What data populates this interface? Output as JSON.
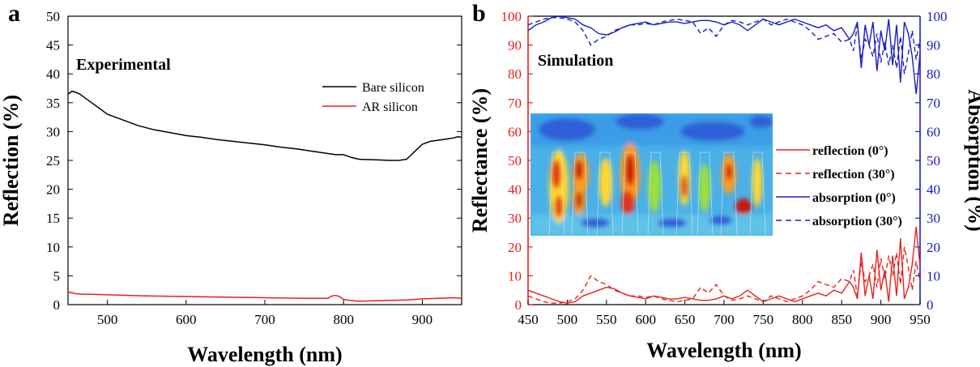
{
  "chart_data": [
    {
      "panel": "a",
      "type": "line",
      "annotation": "Experimental",
      "xlabel": "Wavelength (nm)",
      "ylabel": "Reflection (%)",
      "xlim": [
        450,
        950
      ],
      "ylim": [
        0,
        50
      ],
      "x_ticks": [
        500,
        600,
        700,
        800,
        900
      ],
      "y_ticks": [
        0,
        5,
        10,
        15,
        20,
        25,
        30,
        35,
        40,
        45,
        50
      ],
      "legend_position": "top-right",
      "series": [
        {
          "name": "Bare silicon",
          "color": "#000000",
          "x": [
            450,
            455,
            460,
            465,
            470,
            480,
            490,
            500,
            520,
            540,
            560,
            580,
            600,
            620,
            640,
            660,
            680,
            700,
            720,
            740,
            760,
            780,
            790,
            800,
            810,
            820,
            840,
            860,
            870,
            880,
            890,
            900,
            910,
            920,
            930,
            940,
            945,
            950
          ],
          "y": [
            36.5,
            37.0,
            36.8,
            36.5,
            36.0,
            35.0,
            34.0,
            33.0,
            32.0,
            31.0,
            30.3,
            29.8,
            29.3,
            29.0,
            28.6,
            28.3,
            28.0,
            27.7,
            27.3,
            27.0,
            26.6,
            26.2,
            26.0,
            26.0,
            25.5,
            25.2,
            25.1,
            25.0,
            25.0,
            25.2,
            26.5,
            27.8,
            28.3,
            28.5,
            28.7,
            28.9,
            29.1,
            29.0
          ]
        },
        {
          "name": "AR silicon",
          "color": "#e8201e",
          "x": [
            450,
            460,
            470,
            480,
            500,
            550,
            600,
            650,
            700,
            750,
            780,
            785,
            790,
            795,
            800,
            810,
            820,
            850,
            880,
            900,
            920,
            940,
            950
          ],
          "y": [
            2.2,
            1.9,
            1.8,
            1.8,
            1.7,
            1.5,
            1.4,
            1.3,
            1.2,
            1.1,
            1.1,
            1.5,
            1.6,
            1.4,
            0.9,
            0.7,
            0.6,
            0.7,
            0.8,
            1.0,
            1.1,
            1.2,
            1.1
          ]
        }
      ]
    },
    {
      "panel": "b",
      "type": "line",
      "annotation": "Simulation",
      "xlabel": "Wavelength (nm)",
      "ylabel_left": "Reflectance (%)",
      "ylabel_right": "Absorption (%)",
      "xlim": [
        450,
        950
      ],
      "ylim_left": [
        0,
        100
      ],
      "ylim_right": [
        0,
        100
      ],
      "x_ticks": [
        450,
        500,
        550,
        600,
        650,
        700,
        750,
        800,
        850,
        900,
        950
      ],
      "y_ticks": [
        0,
        10,
        20,
        30,
        40,
        50,
        60,
        70,
        80,
        90,
        100
      ],
      "left_axis_color": "#e8201e",
      "right_axis_color": "#1b1bc4",
      "inset": "field intensity map (blue to red)",
      "legend_position": "right",
      "series": [
        {
          "name": "reflection (0°)",
          "axis": "left",
          "style": "solid",
          "color": "#e8201e",
          "x": [
            450,
            460,
            470,
            480,
            490,
            500,
            510,
            520,
            530,
            540,
            550,
            560,
            570,
            580,
            590,
            600,
            610,
            620,
            630,
            640,
            650,
            660,
            670,
            680,
            690,
            700,
            710,
            720,
            730,
            740,
            750,
            760,
            770,
            780,
            790,
            800,
            810,
            820,
            830,
            840,
            850,
            860,
            865,
            870,
            875,
            880,
            885,
            890,
            895,
            900,
            905,
            910,
            915,
            920,
            925,
            930,
            935,
            940,
            945,
            950
          ],
          "y": [
            5,
            4,
            3,
            2,
            1,
            0.5,
            1,
            3,
            4,
            5,
            6,
            5.5,
            4,
            3,
            2.5,
            2,
            3,
            2.5,
            2,
            2,
            2.5,
            2,
            1.5,
            1.5,
            2,
            3,
            2,
            3,
            5,
            3,
            1,
            2,
            3,
            2,
            1,
            2,
            3,
            4,
            3,
            5,
            4,
            8,
            6,
            2,
            18,
            3,
            10,
            2,
            19,
            5,
            12,
            1,
            17,
            3,
            23,
            2,
            6,
            14,
            27,
            13
          ]
        },
        {
          "name": "reflection (30°)",
          "axis": "left",
          "style": "dashed",
          "color": "#e8201e",
          "x": [
            450,
            460,
            470,
            480,
            490,
            500,
            510,
            520,
            530,
            540,
            550,
            560,
            570,
            580,
            590,
            600,
            610,
            620,
            630,
            640,
            650,
            660,
            670,
            680,
            690,
            700,
            710,
            720,
            730,
            740,
            750,
            760,
            770,
            780,
            790,
            800,
            810,
            820,
            830,
            840,
            850,
            860,
            865,
            870,
            875,
            880,
            885,
            890,
            895,
            900,
            905,
            910,
            915,
            920,
            925,
            930,
            935,
            940,
            945,
            950
          ],
          "y": [
            3,
            2,
            1,
            0.5,
            0.5,
            1,
            2,
            5,
            10,
            8,
            7,
            5,
            4,
            3,
            3,
            2.5,
            3,
            2,
            1.5,
            1,
            1.5,
            2,
            6,
            4,
            7,
            3,
            1.5,
            2,
            3,
            2,
            1,
            3,
            2,
            1,
            2,
            3,
            5,
            8,
            7,
            6,
            9,
            8,
            12,
            3,
            15,
            8,
            10,
            14,
            6,
            16,
            9,
            17,
            10,
            18,
            7,
            20,
            13,
            5,
            15,
            8
          ]
        },
        {
          "name": "absorption (0°)",
          "axis": "right",
          "style": "solid",
          "color": "#1b1bc4",
          "x": [
            450,
            460,
            470,
            480,
            490,
            500,
            510,
            520,
            530,
            540,
            550,
            560,
            570,
            580,
            590,
            600,
            610,
            620,
            630,
            640,
            650,
            660,
            670,
            680,
            690,
            700,
            710,
            720,
            730,
            740,
            750,
            760,
            770,
            780,
            790,
            800,
            810,
            820,
            830,
            840,
            850,
            860,
            865,
            870,
            875,
            880,
            885,
            890,
            895,
            900,
            905,
            910,
            915,
            920,
            925,
            930,
            935,
            940,
            945,
            950
          ],
          "y": [
            95,
            97,
            98,
            99.5,
            100,
            99.5,
            99,
            97,
            96,
            94,
            93.5,
            94.5,
            96,
            97,
            97.5,
            98,
            97,
            97.5,
            98,
            98,
            97.5,
            98,
            98.5,
            98.5,
            98,
            97,
            98,
            97,
            95,
            97,
            99,
            98,
            97,
            98,
            99,
            98,
            97,
            96,
            97,
            95,
            96,
            92,
            94,
            98,
            82,
            97,
            90,
            98,
            81,
            95,
            88,
            99,
            83,
            97,
            77,
            98,
            94,
            86,
            73,
            87
          ]
        },
        {
          "name": "absorption (30°)",
          "axis": "right",
          "style": "dashed",
          "color": "#1b1bc4",
          "x": [
            450,
            460,
            470,
            480,
            490,
            500,
            510,
            520,
            530,
            540,
            550,
            560,
            570,
            580,
            590,
            600,
            610,
            620,
            630,
            640,
            650,
            660,
            670,
            680,
            690,
            700,
            710,
            720,
            730,
            740,
            750,
            760,
            770,
            780,
            790,
            800,
            810,
            820,
            830,
            840,
            850,
            860,
            865,
            870,
            875,
            880,
            885,
            890,
            895,
            900,
            905,
            910,
            915,
            920,
            925,
            930,
            935,
            940,
            945,
            950
          ],
          "y": [
            97,
            98,
            99,
            99.5,
            99.5,
            99,
            98,
            95,
            90,
            92,
            93,
            95,
            96,
            97,
            97,
            97.5,
            97,
            98,
            98.5,
            99,
            98.5,
            98,
            94,
            96,
            93,
            97,
            98.5,
            98,
            97,
            98,
            99,
            97,
            98,
            99,
            98,
            97,
            95,
            92,
            93,
            94,
            91,
            92,
            88,
            97,
            85,
            92,
            90,
            86,
            94,
            84,
            91,
            83,
            90,
            82,
            93,
            80,
            87,
            95,
            85,
            92
          ]
        }
      ]
    }
  ]
}
